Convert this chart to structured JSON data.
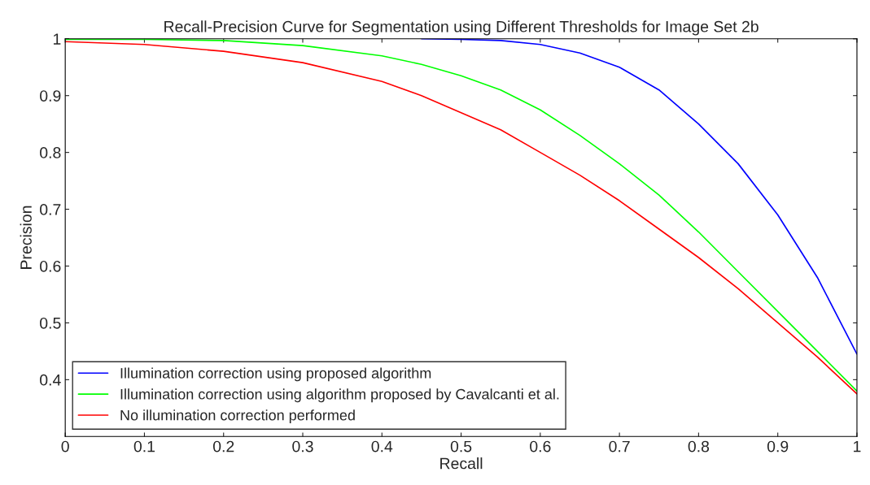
{
  "chart_data": {
    "type": "line",
    "title": "Recall-Precision Curve for Segmentation using Different Thresholds for Image Set 2b",
    "xlabel": "Recall",
    "ylabel": "Precision",
    "xlim": [
      0,
      1
    ],
    "ylim": [
      0.3,
      1
    ],
    "xticks": [
      0,
      0.1,
      0.2,
      0.3,
      0.4,
      0.5,
      0.6,
      0.7,
      0.8,
      0.9,
      1
    ],
    "yticks": [
      0.4,
      0.5,
      0.6,
      0.7,
      0.8,
      0.9,
      1
    ],
    "grid": false,
    "legend": "bottom left",
    "marker": "none",
    "line_style": "solid",
    "series": [
      {
        "name": "Illumination correction using proposed algorithm",
        "color": "#0000ff",
        "x": [
          0.45,
          0.5,
          0.55,
          0.6,
          0.65,
          0.7,
          0.75,
          0.8,
          0.85,
          0.9,
          0.95,
          1.0
        ],
        "values": [
          1.0,
          0.999,
          0.997,
          0.99,
          0.975,
          0.95,
          0.91,
          0.85,
          0.78,
          0.69,
          0.58,
          0.445
        ]
      },
      {
        "name": "Illumination correction using algorithm proposed by Cavalcanti et al.",
        "color": "#00ff00",
        "x": [
          0,
          0.1,
          0.2,
          0.3,
          0.4,
          0.45,
          0.5,
          0.55,
          0.6,
          0.65,
          0.7,
          0.75,
          0.8,
          0.85,
          0.9,
          0.95,
          1.0
        ],
        "values": [
          0.999,
          0.999,
          0.997,
          0.988,
          0.97,
          0.955,
          0.935,
          0.91,
          0.875,
          0.83,
          0.78,
          0.725,
          0.66,
          0.59,
          0.52,
          0.45,
          0.38
        ]
      },
      {
        "name": "No illumination correction performed",
        "color": "#ff0000",
        "x": [
          0,
          0.1,
          0.2,
          0.3,
          0.4,
          0.45,
          0.5,
          0.55,
          0.6,
          0.65,
          0.7,
          0.75,
          0.8,
          0.85,
          0.9,
          0.95,
          1.0
        ],
        "values": [
          0.995,
          0.99,
          0.978,
          0.958,
          0.925,
          0.9,
          0.87,
          0.84,
          0.8,
          0.76,
          0.715,
          0.665,
          0.615,
          0.56,
          0.5,
          0.44,
          0.375
        ]
      }
    ]
  }
}
